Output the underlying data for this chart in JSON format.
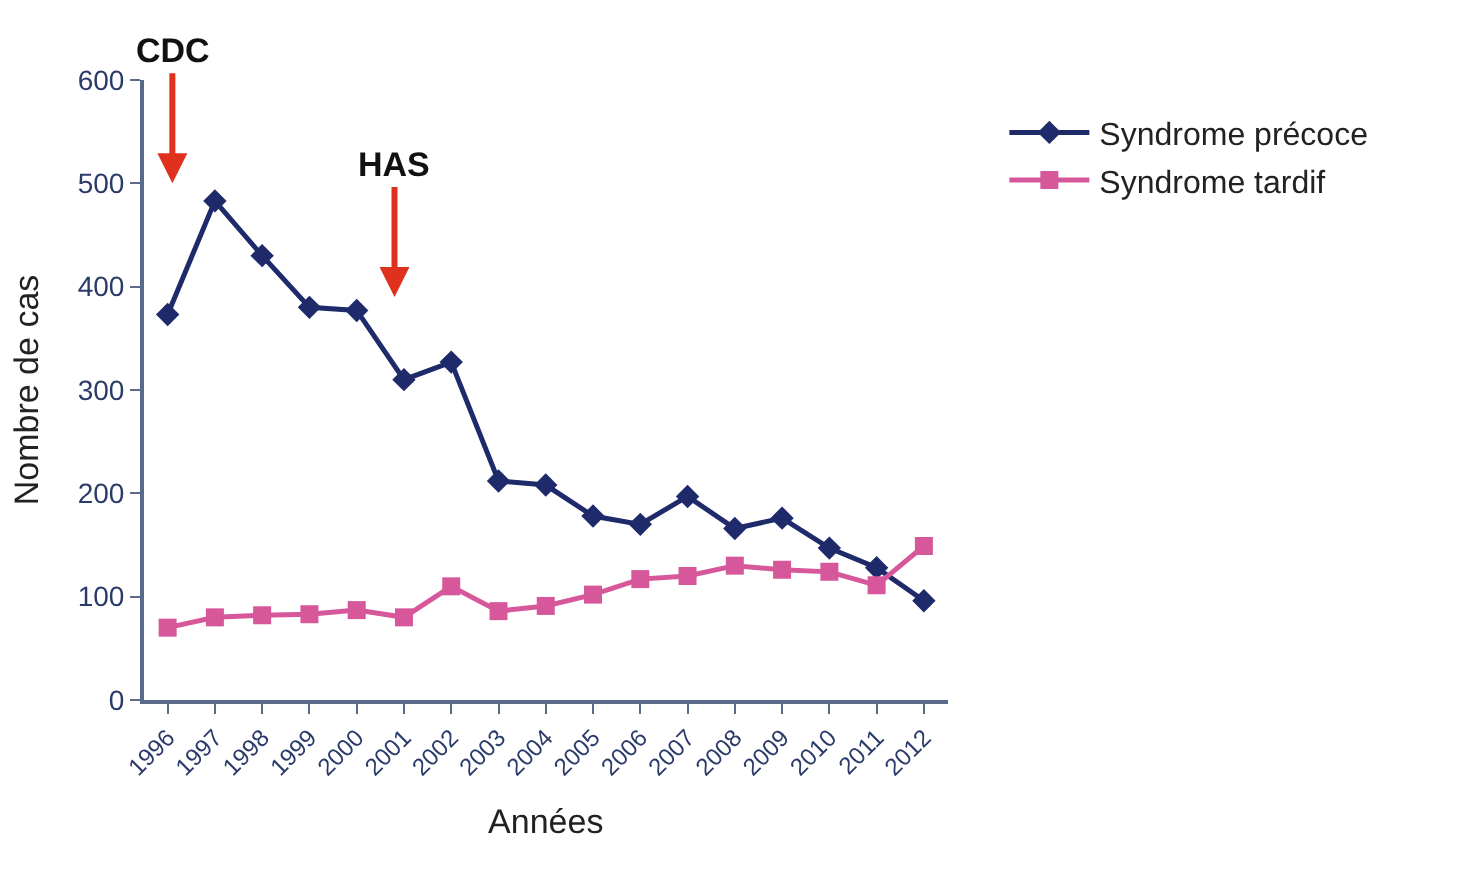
{
  "chart_data": {
    "type": "line",
    "xlabel": "Années",
    "ylabel": "Nombre de cas",
    "categories": [
      "1996",
      "1997",
      "1998",
      "1999",
      "2000",
      "2001",
      "2002",
      "2003",
      "2004",
      "2005",
      "2006",
      "2007",
      "2008",
      "2009",
      "2010",
      "2011",
      "2012"
    ],
    "series": [
      {
        "name": "Syndrome précoce",
        "color": "#1f2a6b",
        "marker": "diamond",
        "values": [
          373,
          483,
          430,
          380,
          377,
          310,
          327,
          212,
          208,
          178,
          170,
          197,
          166,
          176,
          147,
          128,
          96
        ]
      },
      {
        "name": "Syndrome tardif",
        "color": "#d6589b",
        "marker": "square",
        "values": [
          70,
          80,
          82,
          83,
          87,
          80,
          110,
          86,
          91,
          102,
          117,
          120,
          130,
          126,
          124,
          111,
          149
        ]
      }
    ],
    "ylim": [
      0,
      600
    ],
    "yticks": [
      0,
      100,
      200,
      300,
      400,
      500,
      600
    ],
    "legend": "top right",
    "annotations": [
      "CDC",
      "HAS"
    ]
  }
}
